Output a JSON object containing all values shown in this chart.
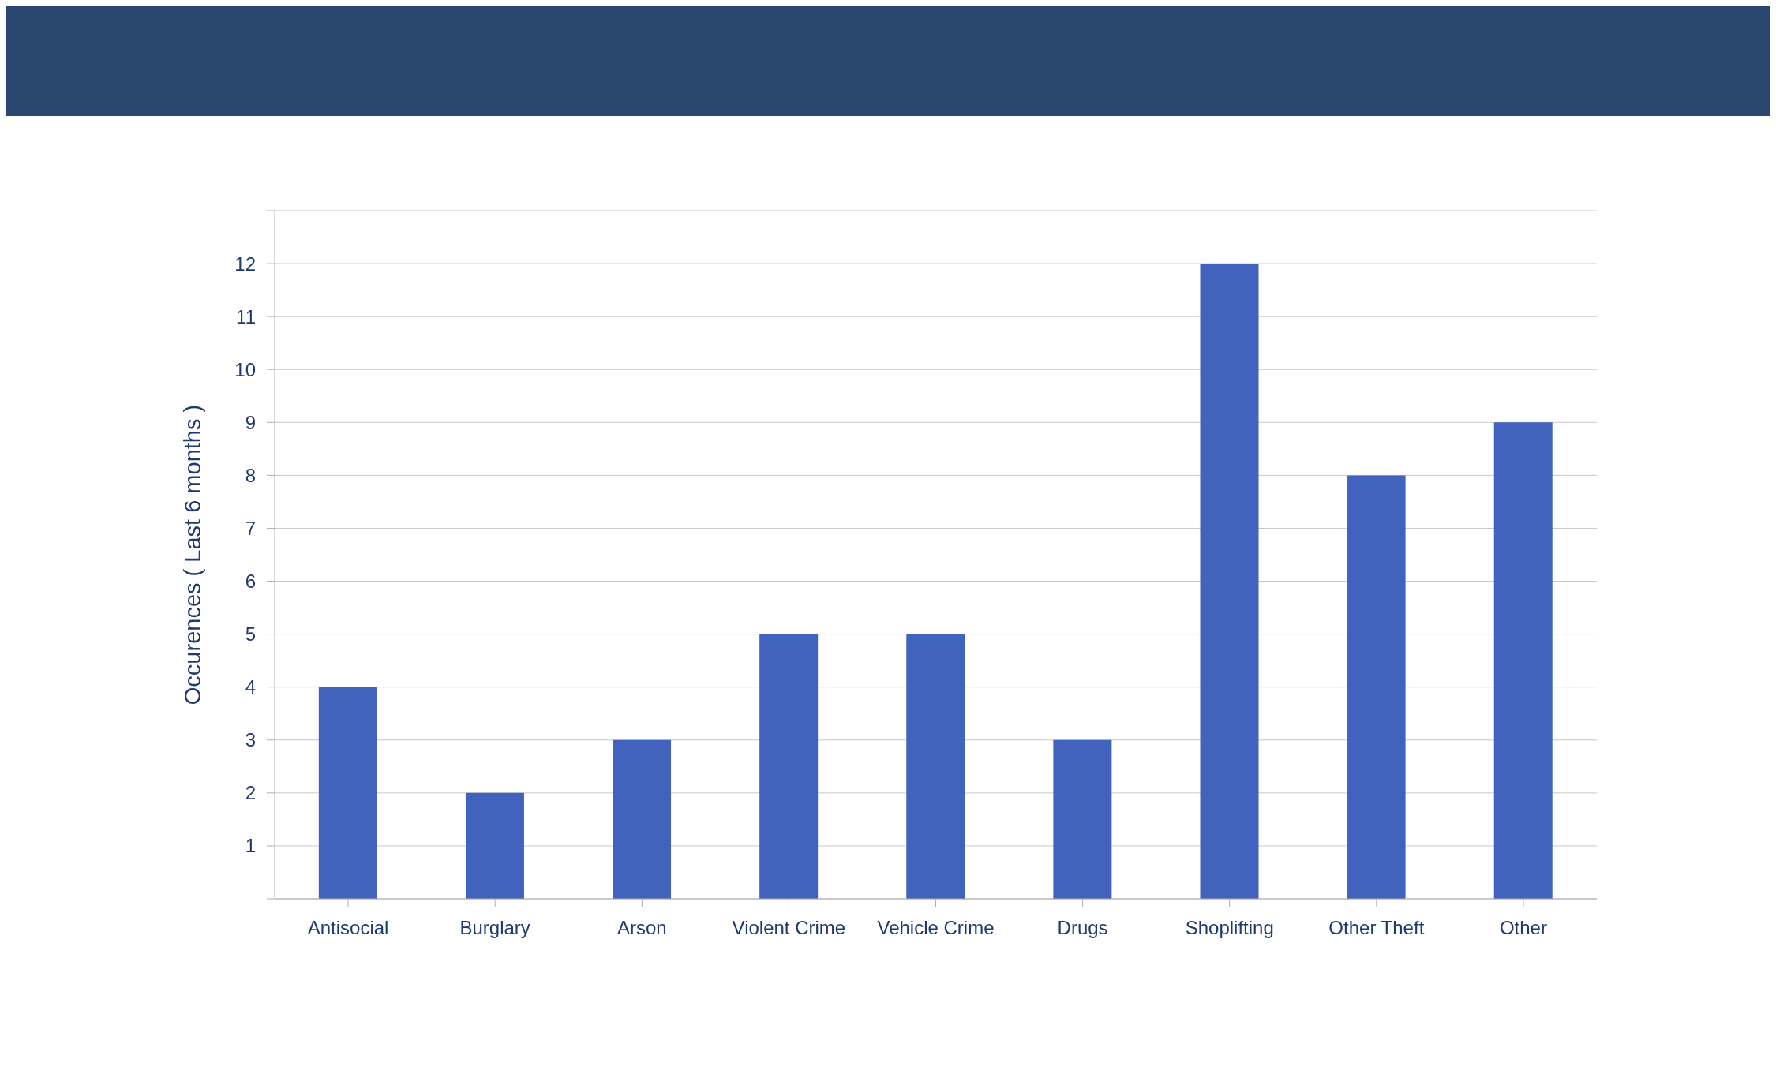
{
  "chart_data": {
    "type": "bar",
    "ylabel": "Occurences ( Last 6 months )",
    "categories": [
      "Antisocial",
      "Burglary",
      "Arson",
      "Violent Crime",
      "Vehicle Crime",
      "Drugs",
      "Shoplifting",
      "Other Theft",
      "Other"
    ],
    "values": [
      4,
      2,
      3,
      5,
      5,
      3,
      12,
      8,
      9
    ],
    "color": "#4263bd",
    "ylim": [
      0,
      13
    ],
    "yticks": [
      {
        "value": 0,
        "label": null
      },
      1,
      2,
      3,
      4,
      5,
      6,
      7,
      8,
      9,
      10,
      11,
      12,
      {
        "value": 13,
        "label": null
      }
    ],
    "grid": "y",
    "legend": false
  }
}
